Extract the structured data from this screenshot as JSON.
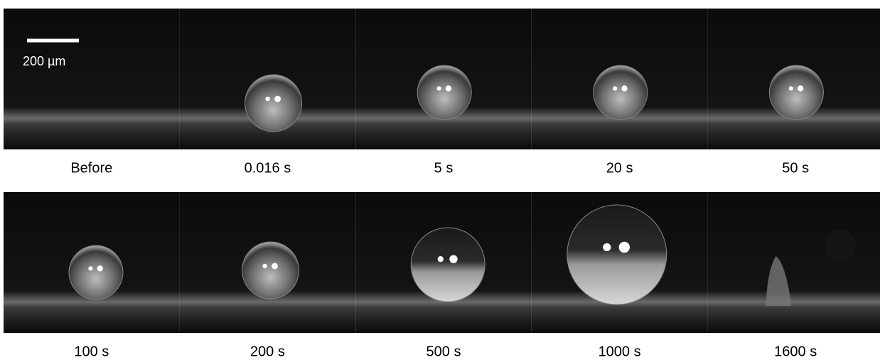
{
  "scale_bar": {
    "label": "200 µm"
  },
  "frames": [
    {
      "label": "Before"
    },
    {
      "label": "0.016 s"
    },
    {
      "label": "5 s"
    },
    {
      "label": "20 s"
    },
    {
      "label": "50 s"
    },
    {
      "label": "100 s"
    },
    {
      "label": "200 s"
    },
    {
      "label": "500 s"
    },
    {
      "label": "1000 s"
    },
    {
      "label": "1600 s"
    }
  ]
}
